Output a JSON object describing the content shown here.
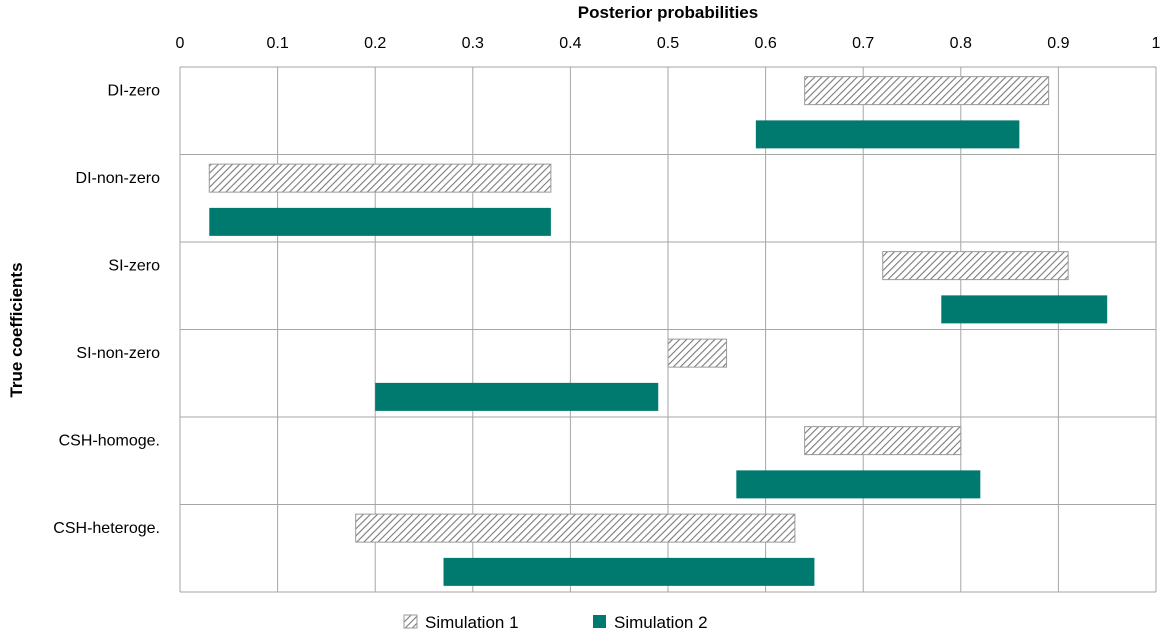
{
  "chart_data": {
    "type": "bar",
    "orientation": "horizontal-range",
    "title": "",
    "xlabel": "Posterior probabilities",
    "ylabel": "True coefficients",
    "xlim": [
      0,
      1
    ],
    "xticks": [
      0,
      0.1,
      0.2,
      0.3,
      0.4,
      0.5,
      0.6,
      0.7,
      0.8,
      0.9,
      1
    ],
    "x_tick_labels": [
      "0",
      "0.1",
      "0.2",
      "0.3",
      "0.4",
      "0.5",
      "0.6",
      "0.7",
      "0.8",
      "0.9",
      "1"
    ],
    "x_axis_position": "top",
    "grid": true,
    "legend_position": "bottom",
    "categories": [
      "DI-zero",
      "DI-non-zero",
      "SI-zero",
      "SI-non-zero",
      "CSH-homoge.",
      "CSH-heteroge."
    ],
    "series": [
      {
        "name": "Simulation 1",
        "pattern": "hatched",
        "color": "#808080",
        "ranges": [
          [
            0.64,
            0.89
          ],
          [
            0.03,
            0.38
          ],
          [
            0.72,
            0.91
          ],
          [
            0.5,
            0.56
          ],
          [
            0.64,
            0.8
          ],
          [
            0.18,
            0.63
          ]
        ]
      },
      {
        "name": "Simulation 2",
        "pattern": "solid",
        "color": "#007A6E",
        "ranges": [
          [
            0.59,
            0.86
          ],
          [
            0.03,
            0.38
          ],
          [
            0.78,
            0.95
          ],
          [
            0.2,
            0.49
          ],
          [
            0.57,
            0.82
          ],
          [
            0.27,
            0.65
          ]
        ]
      }
    ]
  }
}
